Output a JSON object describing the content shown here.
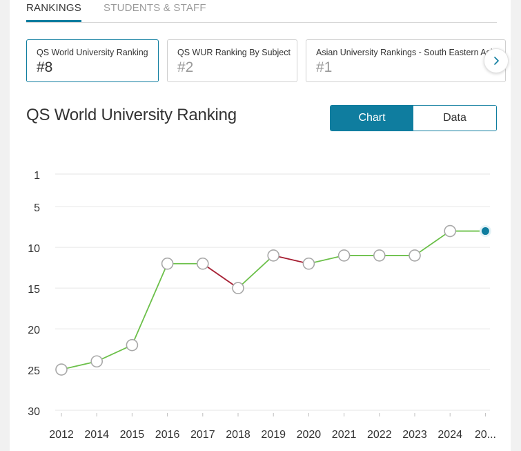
{
  "tabs": [
    {
      "label": "RANKINGS",
      "active": true
    },
    {
      "label": "STUDENTS & STAFF",
      "active": false
    }
  ],
  "ranking_cards": [
    {
      "label": "QS World University Ranking",
      "rank": "#8"
    },
    {
      "label": "QS WUR Ranking By Subject",
      "rank": "#2"
    },
    {
      "label": "Asian University Rankings - South Eastern Asia",
      "rank": "#1"
    }
  ],
  "next_icon": "chevron-right-icon",
  "section_title": "QS World University Ranking",
  "view_toggle": {
    "chart_label": "Chart",
    "data_label": "Data",
    "selected": "Chart"
  },
  "colors": {
    "accent": "#0f7d9f",
    "improve": "#6cc04a",
    "decline": "#a51c30",
    "grid": "#e6e6e6",
    "point_stroke": "#a8a8a8"
  },
  "chart_data": {
    "type": "line",
    "title": "",
    "xlabel": "",
    "ylabel": "",
    "y_inverted": true,
    "ylim": [
      1,
      30
    ],
    "yticks": [
      "1",
      "5",
      "10",
      "15",
      "20",
      "25",
      "30"
    ],
    "categories": [
      "2012",
      "2014",
      "2015",
      "2016",
      "2017",
      "2018",
      "2019",
      "2020",
      "2021",
      "2022",
      "2023",
      "2024",
      "20..."
    ],
    "values": [
      25,
      24,
      22,
      12,
      12,
      15,
      11,
      12,
      11,
      11,
      11,
      8,
      8
    ],
    "grid": true,
    "legend": "none"
  }
}
